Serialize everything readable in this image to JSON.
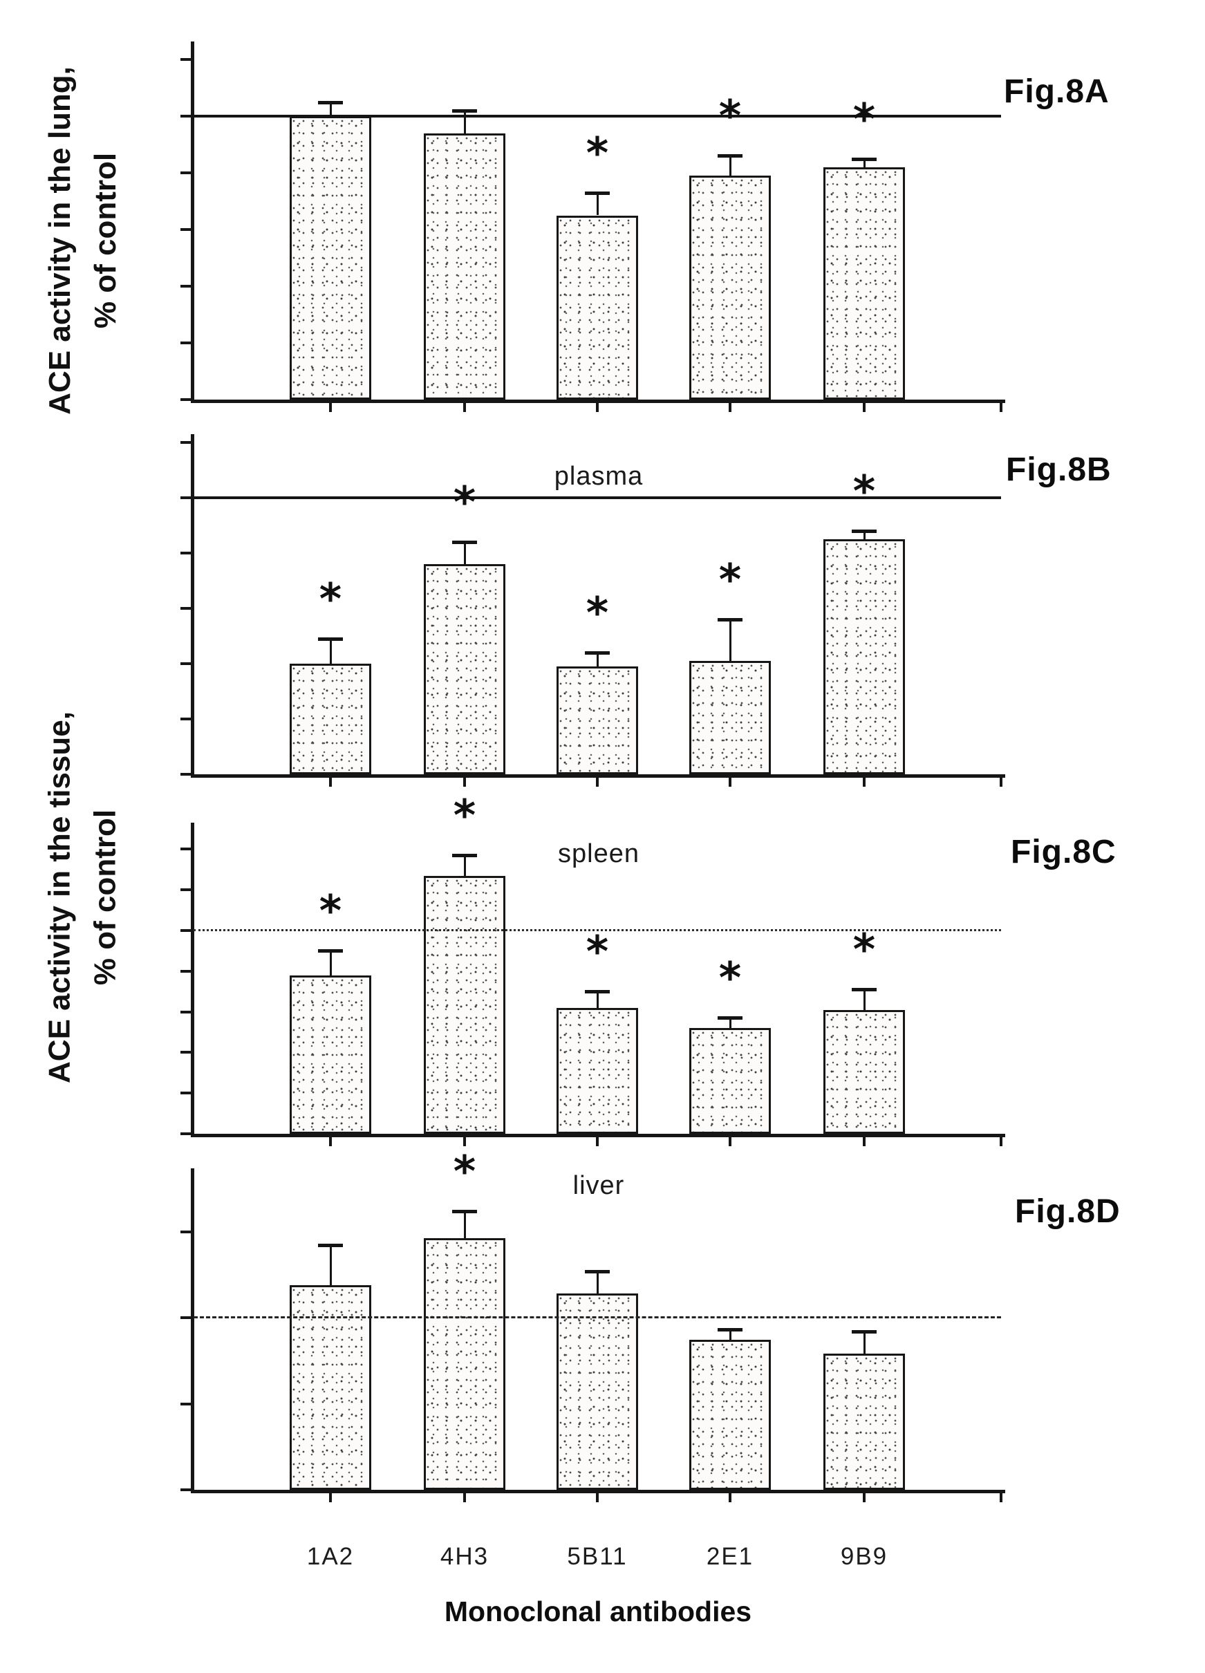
{
  "figure": {
    "xlabel": "Monoclonal antibodies",
    "categories": [
      "1A2",
      "4H3",
      "5B11",
      "2E1",
      "9B9"
    ],
    "ylabel_left_top": {
      "line1": "ACE activity in the lung,",
      "line2": "% of control"
    },
    "ylabel_left_bottom": {
      "line1": "ACE activity in the tissue,",
      "line2": "% of control"
    },
    "significance_marker": "*",
    "ink_color": "#141414",
    "background_color": "#ffffff"
  },
  "chart_data": [
    {
      "type": "bar",
      "fig_label": "Fig.8A",
      "title": "",
      "tissue": "lung",
      "ylabel": "ACE activity in the lung, % of control",
      "xlabel": "Monoclonal antibodies",
      "categories": [
        "1A2",
        "4H3",
        "5B11",
        "2E1",
        "9B9"
      ],
      "values": [
        100,
        94,
        65,
        79,
        82
      ],
      "errors": [
        5,
        8,
        8,
        7,
        3
      ],
      "significant": [
        false,
        false,
        true,
        true,
        true
      ],
      "ylim": [
        0,
        125
      ],
      "yticks": [
        120,
        100,
        80,
        60,
        40,
        20,
        0
      ],
      "ref_line": 100,
      "ref_line_style": "solid",
      "grid": false,
      "legend": false
    },
    {
      "type": "bar",
      "fig_label": "Fig.8B",
      "title": "plasma",
      "tissue": "plasma",
      "ylabel": "% of control",
      "xlabel": "Monoclonal antibodies",
      "categories": [
        "1A2",
        "4H3",
        "5B11",
        "2E1",
        "9B9"
      ],
      "values": [
        40,
        76,
        39,
        41,
        85
      ],
      "errors": [
        9,
        8,
        5,
        15,
        3
      ],
      "significant": [
        true,
        true,
        true,
        true,
        true
      ],
      "ylim": [
        0,
        125
      ],
      "yticks": [
        120,
        100,
        80,
        60,
        40,
        20,
        0
      ],
      "ref_line": 100,
      "ref_line_style": "solid",
      "grid": false,
      "legend": false
    },
    {
      "type": "bar",
      "fig_label": "Fig.8C",
      "title": "spleen",
      "tissue": "spleen",
      "ylabel": "ACE activity in the tissue, % of control",
      "xlabel": "Monoclonal antibodies",
      "categories": [
        "1A2",
        "4H3",
        "5B11",
        "2E1",
        "9B9"
      ],
      "values": [
        78,
        127,
        62,
        52,
        61
      ],
      "errors": [
        12,
        10,
        8,
        5,
        10
      ],
      "significant": [
        true,
        true,
        true,
        true,
        true
      ],
      "ylim": [
        0,
        150
      ],
      "yticks": [
        140,
        120,
        100,
        80,
        60,
        40,
        20,
        0
      ],
      "ref_line": 100,
      "ref_line_style": "dotted",
      "grid": false,
      "legend": false
    },
    {
      "type": "bar",
      "fig_label": "Fig.8D",
      "title": "liver",
      "tissue": "liver",
      "ylabel": "ACE activity in the tissue, % of control",
      "xlabel": "Monoclonal antibodies",
      "categories": [
        "1A2",
        "4H3",
        "5B11",
        "2E1",
        "9B9"
      ],
      "values": [
        119,
        146,
        114,
        87,
        79
      ],
      "errors": [
        23,
        16,
        13,
        6,
        13
      ],
      "significant": [
        false,
        true,
        false,
        false,
        false
      ],
      "ylim": [
        0,
        175
      ],
      "yticks": [
        150,
        100,
        50,
        0
      ],
      "ref_line": 100,
      "ref_line_style": "dashed",
      "grid": false,
      "legend": false
    }
  ]
}
